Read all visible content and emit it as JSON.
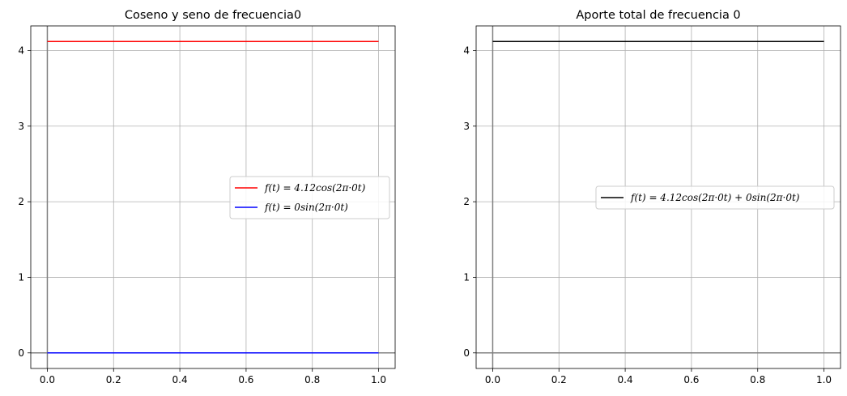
{
  "chart_data": [
    {
      "type": "line",
      "title": "Coseno y seno de frecuencia0",
      "xlabel": "",
      "ylabel": "",
      "xlim": [
        -0.05,
        1.05
      ],
      "ylim": [
        -0.206,
        4.326
      ],
      "xticks": [
        "0.0",
        "0.2",
        "0.4",
        "0.6",
        "0.8",
        "1.0"
      ],
      "yticks": [
        "0",
        "1",
        "2",
        "3",
        "4"
      ],
      "grid": true,
      "legend_position": "right",
      "series": [
        {
          "name": "f(t) = 4.12cos(2π·0t)",
          "color": "#ff0000",
          "x": [
            0,
            1
          ],
          "y": [
            4.12,
            4.12
          ]
        },
        {
          "name": "f(t) = 0sin(2π·0t)",
          "color": "#0000ff",
          "x": [
            0,
            1
          ],
          "y": [
            0,
            0
          ]
        }
      ]
    },
    {
      "type": "line",
      "title": "Aporte total de frecuencia 0",
      "xlabel": "",
      "ylabel": "",
      "xlim": [
        -0.05,
        1.05
      ],
      "ylim": [
        -0.206,
        4.326
      ],
      "xticks": [
        "0.0",
        "0.2",
        "0.4",
        "0.6",
        "0.8",
        "1.0"
      ],
      "yticks": [
        "0",
        "1",
        "2",
        "3",
        "4"
      ],
      "grid": true,
      "legend_position": "center-right",
      "series": [
        {
          "name": "f(t) = 4.12cos(2π·0t) + 0sin(2π·0t)",
          "color": "#000000",
          "x": [
            0,
            1
          ],
          "y": [
            4.12,
            4.12
          ]
        }
      ]
    }
  ]
}
